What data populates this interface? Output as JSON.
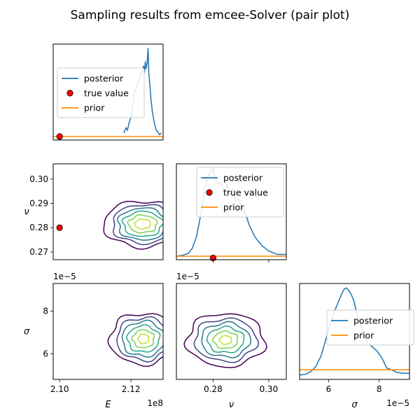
{
  "figure": {
    "title": "Sampling results from emcee-Solver (pair plot)"
  },
  "colors": {
    "posterior": "#1f77b4",
    "prior": "#ff8c00",
    "true_value": "#ff0000",
    "contours": [
      "#440154",
      "#414487",
      "#2a788e",
      "#22a884",
      "#7ad151",
      "#bddf26"
    ]
  },
  "chart_data": [
    {
      "id": "E-marginal",
      "type": "line",
      "panel": "row1-col1",
      "xlim": [
        209820000.0,
        212900000.0
      ],
      "ylim": [
        -0.04,
        1.05
      ],
      "xticks": [],
      "yticks": [],
      "legend": {
        "placement": "center-left",
        "entries": [
          "posterior",
          "true value",
          "prior"
        ]
      },
      "series": [
        {
          "name": "posterior",
          "x": [
            211800000.0,
            211860000.0,
            211900000.0,
            211950000.0,
            212000000.0,
            212050000.0,
            212100000.0,
            212150000.0,
            212200000.0,
            212250000.0,
            212300000.0,
            212350000.0,
            212380000.0,
            212400000.0,
            212420000.0,
            212450000.0,
            212480000.0,
            212500000.0,
            212530000.0,
            212560000.0,
            212600000.0,
            212650000.0,
            212700000.0,
            212750000.0,
            212800000.0,
            212850000.0
          ],
          "y": [
            0.04,
            0.1,
            0.07,
            0.16,
            0.22,
            0.35,
            0.5,
            0.55,
            0.62,
            0.68,
            0.72,
            0.8,
            0.73,
            0.85,
            0.77,
            0.83,
            1.0,
            0.72,
            0.58,
            0.42,
            0.28,
            0.16,
            0.08,
            0.05,
            0.02,
            0.04
          ]
        },
        {
          "name": "prior",
          "x": [
            209820000.0,
            212900000.0
          ],
          "y": [
            0.0,
            0.0
          ]
        },
        {
          "name": "true value",
          "x": [
            210000000.0
          ],
          "y": [
            0.0
          ]
        }
      ]
    },
    {
      "id": "E-nu-joint",
      "type": "contour",
      "panel": "row2-col1",
      "xlim": [
        209820000.0,
        212900000.0
      ],
      "ylim": [
        0.2668,
        0.3063
      ],
      "xticks": [],
      "yticks": [
        0.27,
        0.28,
        0.29,
        0.3
      ],
      "ytick_labels": [
        "0.27",
        "0.28",
        "0.29",
        "0.30"
      ],
      "ylabel": "ν",
      "true_value": {
        "x": 210000000.0,
        "y": 0.28
      },
      "contour_center": {
        "x": 212330000.0,
        "y": 0.2815
      },
      "contour_levels": [
        {
          "rx": 1100000.0,
          "ry": 0.0095
        },
        {
          "rx": 850000.0,
          "ry": 0.008
        },
        {
          "rx": 700000.0,
          "ry": 0.0066
        },
        {
          "rx": 550000.0,
          "ry": 0.0052
        },
        {
          "rx": 400000.0,
          "ry": 0.0036
        },
        {
          "rx": 220000.0,
          "ry": 0.002
        }
      ]
    },
    {
      "id": "nu-marginal",
      "type": "line",
      "panel": "row2-col2",
      "xlim": [
        0.2668,
        0.3063
      ],
      "ylim": [
        -0.04,
        1.05
      ],
      "xticks": [
        0.28,
        0.3
      ],
      "yticks": [],
      "legend": {
        "placement": "upper-right",
        "entries": [
          "posterior",
          "true value",
          "prior"
        ]
      },
      "series": [
        {
          "name": "posterior",
          "x": [
            0.2668,
            0.269,
            0.271,
            0.2725,
            0.274,
            0.275,
            0.276,
            0.277,
            0.278,
            0.279,
            0.28,
            0.281,
            0.282,
            0.283,
            0.284,
            0.285,
            0.286,
            0.287,
            0.288,
            0.289,
            0.29,
            0.291,
            0.292,
            0.293,
            0.295,
            0.2975,
            0.3,
            0.303,
            0.3063
          ],
          "y": [
            0.0,
            0.01,
            0.03,
            0.09,
            0.22,
            0.38,
            0.55,
            0.75,
            0.9,
            0.95,
            1.0,
            0.86,
            0.82,
            0.84,
            0.72,
            0.82,
            0.7,
            0.76,
            0.62,
            0.66,
            0.58,
            0.52,
            0.45,
            0.35,
            0.22,
            0.12,
            0.06,
            0.02,
            0.02
          ]
        },
        {
          "name": "prior",
          "x": [
            0.2668,
            0.3063
          ],
          "y": [
            0.0,
            0.0
          ]
        },
        {
          "name": "true value",
          "x": [
            0.28
          ],
          "y": [
            -0.02
          ]
        }
      ]
    },
    {
      "id": "E-sigma-joint",
      "type": "contour",
      "panel": "row3-col1",
      "xlim": [
        209820000.0,
        212900000.0
      ],
      "ylim": [
        4.8e-05,
        9.3e-05
      ],
      "xticks": [
        210000000.0,
        212000000.0
      ],
      "xtick_labels": [
        "2.10",
        "2.12"
      ],
      "yticks": [
        6e-05,
        8e-05
      ],
      "ytick_labels": [
        "6",
        "8"
      ],
      "xlabel": "E",
      "ylabel": "σ",
      "x_offset_text": "1e8",
      "y_offset_text": "1e−5",
      "contour_center": {
        "x": 212350000.0,
        "y": 6.7e-05
      },
      "contour_levels": [
        {
          "rx": 950000.0,
          "ry": 1.2e-05
        },
        {
          "rx": 750000.0,
          "ry": 1e-05
        },
        {
          "rx": 600000.0,
          "ry": 8.2e-06
        },
        {
          "rx": 450000.0,
          "ry": 6.2e-06
        },
        {
          "rx": 300000.0,
          "ry": 4.2e-06
        },
        {
          "rx": 150000.0,
          "ry": 2.2e-06
        }
      ]
    },
    {
      "id": "nu-sigma-joint",
      "type": "contour",
      "panel": "row3-col2",
      "xlim": [
        0.2668,
        0.3063
      ],
      "ylim": [
        4.8e-05,
        9.3e-05
      ],
      "xticks": [
        0.28,
        0.3
      ],
      "xtick_labels": [
        "0.28",
        "0.30"
      ],
      "yticks": [],
      "xlabel": "ν",
      "y_offset_text": "1e−5",
      "contour_center": {
        "x": 0.2845,
        "y": 6.65e-05
      },
      "contour_levels": [
        {
          "rx": 0.014,
          "ry": 1.25e-05
        },
        {
          "rx": 0.0112,
          "ry": 1e-05
        },
        {
          "rx": 0.0088,
          "ry": 8e-06
        },
        {
          "rx": 0.0066,
          "ry": 6e-06
        },
        {
          "rx": 0.0044,
          "ry": 4e-06
        },
        {
          "rx": 0.0022,
          "ry": 2e-06
        }
      ]
    },
    {
      "id": "sigma-marginal",
      "type": "line",
      "panel": "row3-col3",
      "xlim": [
        4.85e-05,
        9.2e-05
      ],
      "ylim": [
        -0.05,
        1.05
      ],
      "xticks": [
        6e-05,
        8e-05
      ],
      "xtick_labels": [
        "6",
        "8"
      ],
      "yticks": [],
      "xlabel": "σ",
      "x_offset_text": "1e−5",
      "legend": {
        "placement": "center-right",
        "entries": [
          "posterior",
          "prior"
        ]
      },
      "series": [
        {
          "name": "posterior",
          "x": [
            4.85e-05,
            5.1e-05,
            5.3e-05,
            5.5e-05,
            5.7e-05,
            5.9e-05,
            6.1e-05,
            6.3e-05,
            6.5e-05,
            6.6e-05,
            6.7e-05,
            6.8e-05,
            6.9e-05,
            7e-05,
            7.1e-05,
            7.3e-05,
            7.5e-05,
            7.7e-05,
            7.9e-05,
            8.1e-05,
            8.3e-05,
            8.5e-05,
            8.7e-05,
            9e-05,
            9.2e-05
          ],
          "y": [
            0.0,
            0.01,
            0.04,
            0.1,
            0.22,
            0.42,
            0.62,
            0.78,
            0.92,
            0.98,
            1.0,
            0.97,
            0.92,
            0.85,
            0.72,
            0.55,
            0.38,
            0.33,
            0.28,
            0.2,
            0.08,
            0.06,
            0.03,
            0.02,
            0.02
          ]
        },
        {
          "name": "prior",
          "x": [
            4.85e-05,
            9.2e-05
          ],
          "y": [
            0.06,
            0.06
          ]
        }
      ]
    }
  ]
}
